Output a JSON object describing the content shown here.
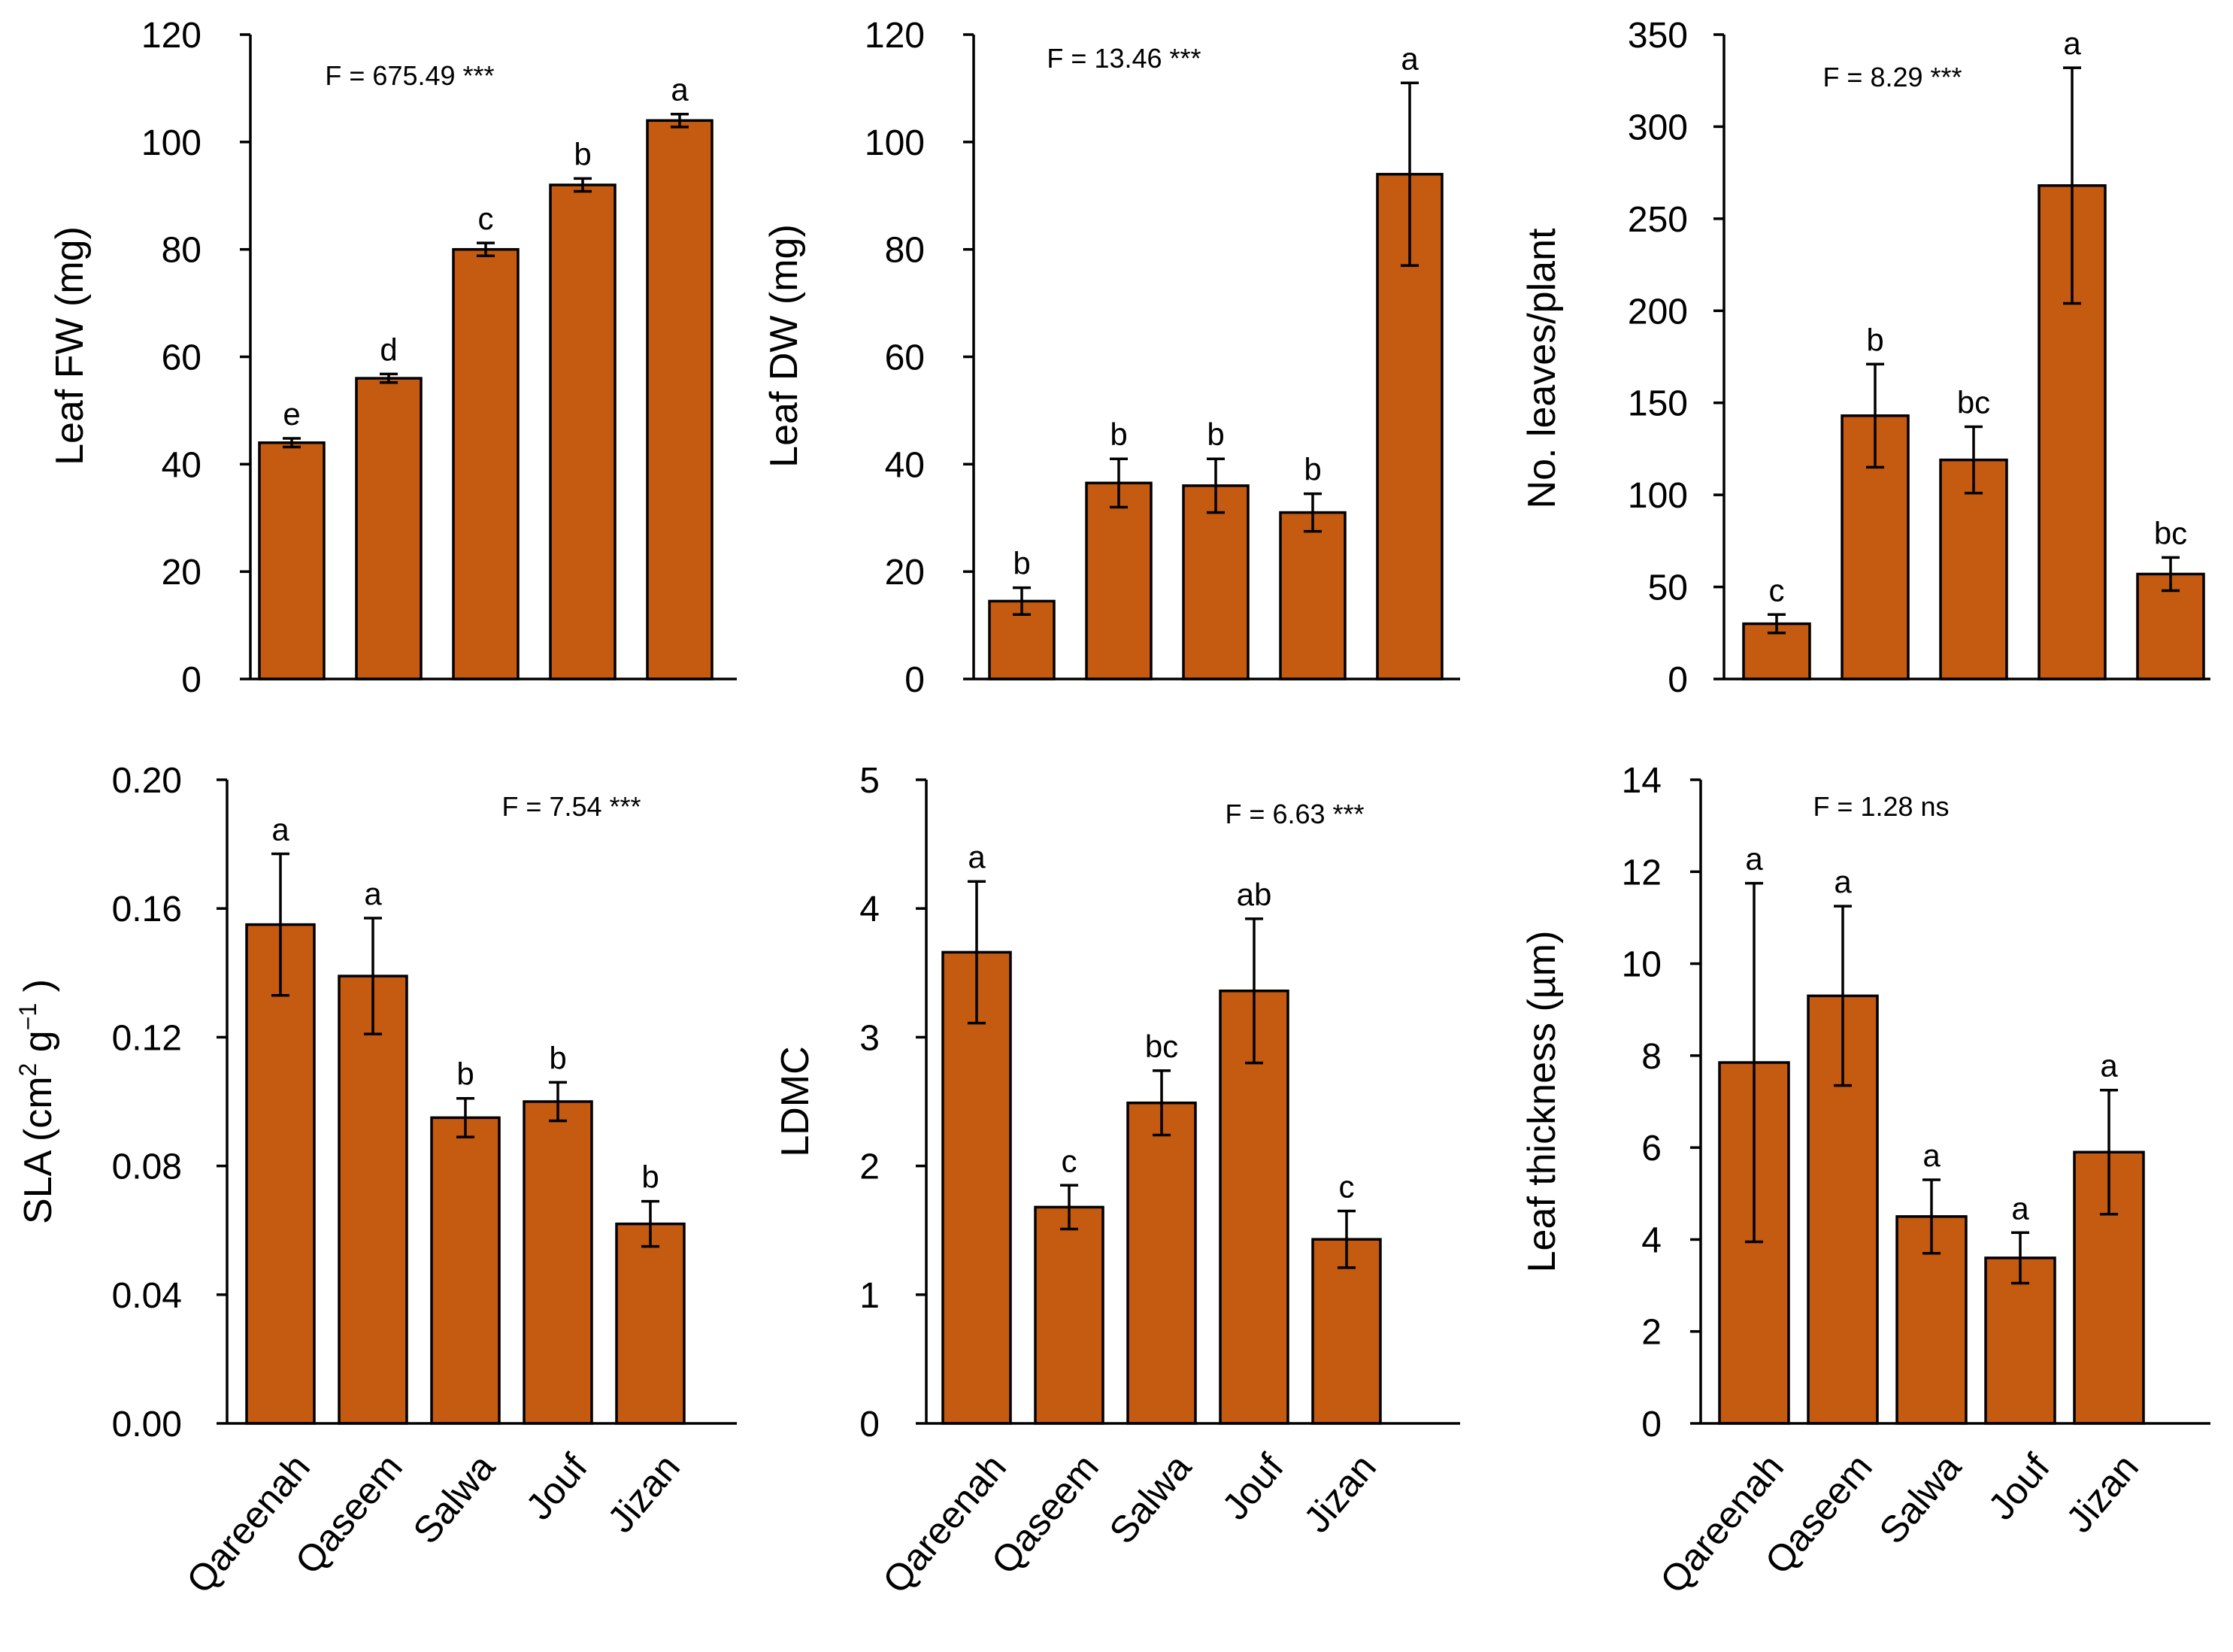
{
  "bar_color": "#C55A11",
  "chart_data": [
    {
      "type": "bar",
      "categories": [
        "Qareenah",
        "Qaseem",
        "Salwa",
        "Jouf",
        "Jizan"
      ],
      "ylabel": "Leaf FW (mg)",
      "ylim": [
        0,
        120
      ],
      "yticks": [
        "0",
        "20",
        "40",
        "60",
        "80",
        "100",
        "120"
      ],
      "values": [
        44,
        56,
        80,
        92,
        104
      ],
      "errors": [
        0.8,
        0.8,
        1.2,
        1.2,
        1.2
      ],
      "letters": [
        "e",
        "d",
        "c",
        "b",
        "a"
      ],
      "stat": "F = 675.49 ***",
      "show_categories": false
    },
    {
      "type": "bar",
      "categories": [
        "Qareenah",
        "Qaseem",
        "Salwa",
        "Jouf",
        "Jizan"
      ],
      "ylabel": "Leaf DW (mg)",
      "ylim": [
        0,
        120
      ],
      "yticks": [
        "0",
        "20",
        "40",
        "60",
        "80",
        "100",
        "120"
      ],
      "values": [
        14.5,
        36.5,
        36,
        31,
        94
      ],
      "errors": [
        2.5,
        4.5,
        5,
        3.5,
        17
      ],
      "letters": [
        "b",
        "b",
        "b",
        "b",
        "a"
      ],
      "stat": "F = 13.46 ***",
      "show_categories": false
    },
    {
      "type": "bar",
      "categories": [
        "Qareenah",
        "Qaseem",
        "Salwa",
        "Jouf",
        "Jizan"
      ],
      "ylabel": "No. leaves/plant",
      "ylim": [
        0,
        350
      ],
      "yticks": [
        "0",
        "50",
        "100",
        "150",
        "200",
        "250",
        "300",
        "350"
      ],
      "values": [
        30,
        143,
        119,
        268,
        57
      ],
      "errors": [
        5,
        28,
        18,
        64,
        9
      ],
      "letters": [
        "c",
        "b",
        "bc",
        "a",
        "bc"
      ],
      "stat": "F = 8.29 ***",
      "show_categories": false
    },
    {
      "type": "bar",
      "categories": [
        "Qareenah",
        "Qaseem",
        "Salwa",
        "Jouf",
        "Jizan"
      ],
      "ylabel": "SLA (cm",
      "ylabel_sup1": "2",
      "ylabel_mid": " g",
      "ylabel_sup2": "−1",
      "ylabel_end": " )",
      "ylim": [
        0,
        0.2
      ],
      "yticks": [
        "0.00",
        "0.04",
        "0.08",
        "0.12",
        "0.16",
        "0.20"
      ],
      "values": [
        0.155,
        0.139,
        0.095,
        0.1,
        0.062
      ],
      "errors": [
        0.022,
        0.018,
        0.006,
        0.006,
        0.007
      ],
      "letters": [
        "a",
        "a",
        "b",
        "b",
        "b"
      ],
      "stat": "F = 7.54 ***",
      "show_categories": true
    },
    {
      "type": "bar",
      "categories": [
        "Qareenah",
        "Qaseem",
        "Salwa",
        "Jouf",
        "Jizan"
      ],
      "ylabel": "LDMC",
      "ylim": [
        0,
        5
      ],
      "yticks": [
        "0",
        "1",
        "2",
        "3",
        "4",
        "5"
      ],
      "values": [
        3.66,
        1.68,
        2.49,
        3.36,
        1.43
      ],
      "errors": [
        0.55,
        0.17,
        0.25,
        0.56,
        0.22
      ],
      "letters": [
        "a",
        "c",
        "bc",
        "ab",
        "c"
      ],
      "stat": "F = 6.63 ***",
      "show_categories": true
    },
    {
      "type": "bar",
      "categories": [
        "Qareenah",
        "Qaseem",
        "Salwa",
        "Jouf",
        "Jizan"
      ],
      "ylabel": "Leaf thickness (µm)",
      "ylim": [
        0,
        14
      ],
      "yticks": [
        "0",
        "2",
        "4",
        "6",
        "8",
        "10",
        "12",
        "14"
      ],
      "values": [
        7.85,
        9.3,
        4.5,
        3.6,
        5.9
      ],
      "errors": [
        3.9,
        1.95,
        0.8,
        0.55,
        1.35
      ],
      "letters": [
        "a",
        "a",
        "a",
        "a",
        "a"
      ],
      "stat": "F = 1.28 ns",
      "show_categories": true
    }
  ]
}
